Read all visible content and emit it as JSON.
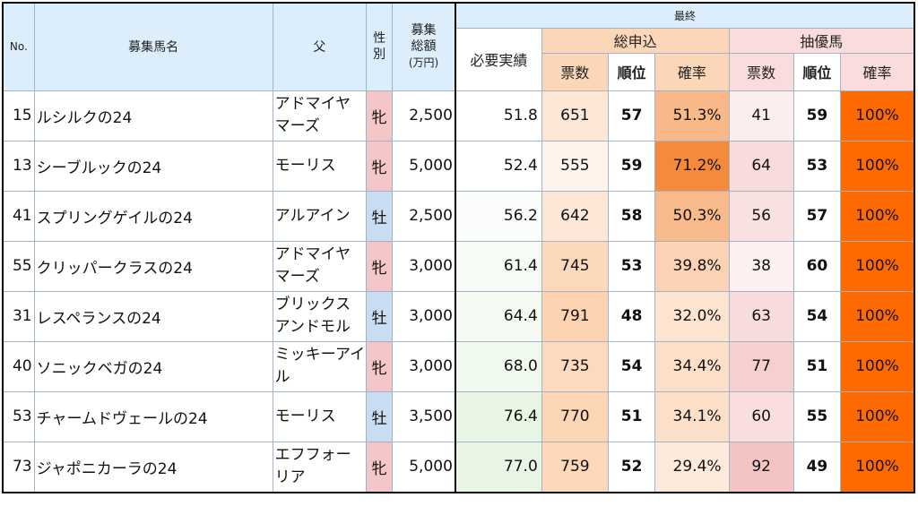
{
  "headers": {
    "no": "No.",
    "name": "募集馬名",
    "sire": "父",
    "sex_line1": "性",
    "sex_line2": "別",
    "amount_line1": "募集",
    "amount_line2": "総額",
    "amount_line3": "(万円)",
    "final": "最終",
    "required": "必要実績",
    "total_group": "総申込",
    "priority_group": "抽優馬",
    "votes": "票数",
    "rank": "順位",
    "rate": "確率"
  },
  "rows": [
    {
      "no": "15",
      "name": "ルシルクの24",
      "sire": "アドマイヤマーズ",
      "sex": "牝",
      "sex_type": "f",
      "amount": "2,500",
      "required": "51.8",
      "t_votes": "651",
      "t_rank": "57",
      "t_rate": "51.3%",
      "p_votes": "41",
      "p_rank": "59",
      "p_rate": "100%"
    },
    {
      "no": "13",
      "name": "シーブルックの24",
      "sire": "モーリス",
      "sex": "牝",
      "sex_type": "f",
      "amount": "5,000",
      "required": "52.4",
      "t_votes": "555",
      "t_rank": "59",
      "t_rate": "71.2%",
      "p_votes": "64",
      "p_rank": "53",
      "p_rate": "100%"
    },
    {
      "no": "41",
      "name": "スプリングゲイルの24",
      "sire": "アルアイン",
      "sex": "牡",
      "sex_type": "m",
      "amount": "2,500",
      "required": "56.2",
      "t_votes": "642",
      "t_rank": "58",
      "t_rate": "50.3%",
      "p_votes": "56",
      "p_rank": "57",
      "p_rate": "100%"
    },
    {
      "no": "55",
      "name": "クリッパークラスの24",
      "sire": "アドマイヤマーズ",
      "sex": "牝",
      "sex_type": "f",
      "amount": "3,000",
      "required": "61.4",
      "t_votes": "745",
      "t_rank": "53",
      "t_rate": "39.8%",
      "p_votes": "38",
      "p_rank": "60",
      "p_rate": "100%"
    },
    {
      "no": "31",
      "name": "レスペランスの24",
      "sire": "ブリックスアンドモル",
      "sex": "牡",
      "sex_type": "m",
      "amount": "3,000",
      "required": "64.4",
      "t_votes": "791",
      "t_rank": "48",
      "t_rate": "32.0%",
      "p_votes": "63",
      "p_rank": "54",
      "p_rate": "100%"
    },
    {
      "no": "40",
      "name": "ソニックベガの24",
      "sire": "ミッキーアイル",
      "sex": "牝",
      "sex_type": "f",
      "amount": "3,000",
      "required": "68.0",
      "t_votes": "735",
      "t_rank": "54",
      "t_rate": "34.4%",
      "p_votes": "77",
      "p_rank": "51",
      "p_rate": "100%"
    },
    {
      "no": "53",
      "name": "チャームドヴェールの24",
      "sire": "モーリス",
      "sex": "牡",
      "sex_type": "m",
      "amount": "3,500",
      "required": "76.4",
      "t_votes": "770",
      "t_rank": "51",
      "t_rate": "34.1%",
      "p_votes": "60",
      "p_rank": "55",
      "p_rate": "100%"
    },
    {
      "no": "73",
      "name": "ジャポニカーラの24",
      "sire": "エフフォーリア",
      "sex": "牝",
      "sex_type": "f",
      "amount": "5,000",
      "required": "77.0",
      "t_votes": "759",
      "t_rank": "52",
      "t_rate": "29.4%",
      "p_votes": "92",
      "p_rank": "49",
      "p_rate": "100%"
    }
  ],
  "colors": {
    "required_lightest": "#ffffff",
    "required_darkest": "#e8f5e4",
    "votes_lightest": "#fff4ec",
    "votes_darkest": "#fcd2b0",
    "rate_lightest": "#fdeadb",
    "rate_darkest": "#f58a3a",
    "pvotes_lightest": "#fdf0f0",
    "pvotes_darkest": "#f3c4c2",
    "prate": "#ff6a00"
  }
}
